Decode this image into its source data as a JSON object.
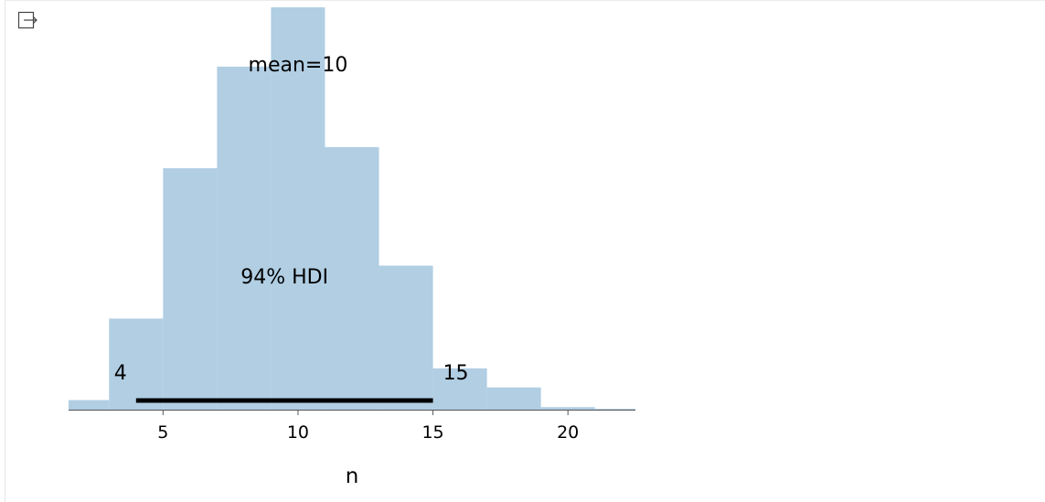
{
  "toolbar": {
    "collapse_icon": "output-collapse-icon"
  },
  "colors": {
    "bar_fill": "#b1cee3",
    "hdi_line": "#000000",
    "axis": "#555555",
    "text": "#000000"
  },
  "chart_data": {
    "type": "bar",
    "title": "",
    "xlabel": "n",
    "ylabel": "",
    "xlim": [
      1.5,
      22.5
    ],
    "ylim": [
      0,
      0.19
    ],
    "xticks": [
      5,
      10,
      15,
      20
    ],
    "grid": false,
    "bins": [
      {
        "x0": 1.5,
        "x1": 3.0,
        "value": 0.0045
      },
      {
        "x0": 3.0,
        "x1": 5.0,
        "value": 0.043
      },
      {
        "x0": 5.0,
        "x1": 7.0,
        "value": 0.114
      },
      {
        "x0": 7.0,
        "x1": 9.0,
        "value": 0.162
      },
      {
        "x0": 9.0,
        "x1": 11.0,
        "value": 0.19
      },
      {
        "x0": 11.0,
        "x1": 13.0,
        "value": 0.124
      },
      {
        "x0": 13.0,
        "x1": 15.0,
        "value": 0.068
      },
      {
        "x0": 15.0,
        "x1": 17.0,
        "value": 0.0195
      },
      {
        "x0": 17.0,
        "x1": 19.0,
        "value": 0.0105
      },
      {
        "x0": 19.0,
        "x1": 21.0,
        "value": 0.0012
      },
      {
        "x0": 21.0,
        "x1": 22.5,
        "value": 0.0004
      }
    ],
    "mean": {
      "value": 10,
      "label": "mean=10"
    },
    "hdi": {
      "prob_label": "94% HDI",
      "low": 4,
      "high": 15,
      "low_label": "4",
      "high_label": "15"
    }
  }
}
